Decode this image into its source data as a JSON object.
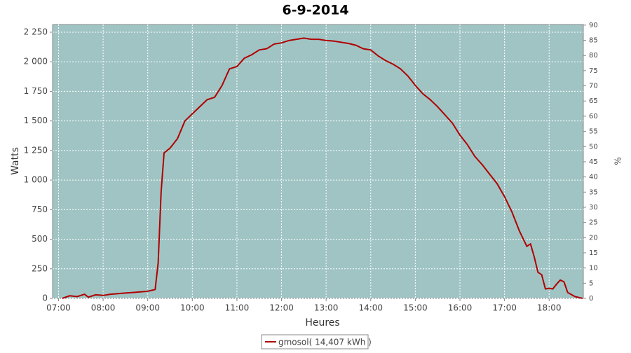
{
  "chart_data": {
    "type": "line",
    "title": "6-9-2014",
    "x_label": "Heures",
    "y_label": "Watts",
    "y2_label": "%",
    "x": [
      "07:05",
      "07:15",
      "07:25",
      "07:35",
      "07:40",
      "07:50",
      "08:00",
      "08:10",
      "08:20",
      "08:30",
      "08:40",
      "08:50",
      "09:00",
      "09:10",
      "09:14",
      "09:18",
      "09:22",
      "09:30",
      "09:40",
      "09:50",
      "10:00",
      "10:10",
      "10:20",
      "10:30",
      "10:40",
      "10:50",
      "11:00",
      "11:10",
      "11:20",
      "11:30",
      "11:40",
      "11:50",
      "12:00",
      "12:10",
      "12:20",
      "12:30",
      "12:40",
      "12:50",
      "13:00",
      "13:10",
      "13:20",
      "13:30",
      "13:40",
      "13:50",
      "14:00",
      "14:10",
      "14:20",
      "14:30",
      "14:40",
      "14:50",
      "15:00",
      "15:10",
      "15:20",
      "15:30",
      "15:40",
      "15:50",
      "16:00",
      "16:10",
      "16:20",
      "16:30",
      "16:40",
      "16:50",
      "17:00",
      "17:10",
      "17:20",
      "17:30",
      "17:35",
      "17:40",
      "17:45",
      "17:50",
      "17:55",
      "18:00",
      "18:05",
      "18:10",
      "18:15",
      "18:20",
      "18:25",
      "18:35",
      "18:45"
    ],
    "series": [
      {
        "name": "gmosol( 14,407 kWh )",
        "color": "#b00000",
        "values": [
          0,
          22,
          15,
          35,
          10,
          30,
          25,
          35,
          40,
          45,
          50,
          55,
          60,
          75,
          300,
          900,
          1230,
          1270,
          1350,
          1500,
          1560,
          1620,
          1680,
          1700,
          1800,
          1940,
          1960,
          2030,
          2060,
          2100,
          2110,
          2150,
          2160,
          2180,
          2190,
          2200,
          2190,
          2190,
          2180,
          2175,
          2165,
          2155,
          2140,
          2110,
          2100,
          2050,
          2010,
          1980,
          1940,
          1880,
          1800,
          1730,
          1680,
          1620,
          1550,
          1480,
          1380,
          1300,
          1200,
          1130,
          1050,
          970,
          860,
          730,
          570,
          440,
          460,
          350,
          220,
          200,
          80,
          85,
          80,
          120,
          155,
          140,
          50,
          15,
          0
        ]
      }
    ],
    "xlim": [
      "06:52",
      "18:46"
    ],
    "xticks": [
      "07:00",
      "08:00",
      "09:00",
      "10:00",
      "11:00",
      "12:00",
      "13:00",
      "14:00",
      "15:00",
      "16:00",
      "17:00",
      "18:00"
    ],
    "ylim": [
      0,
      2315
    ],
    "yticks": [
      0,
      250,
      500,
      750,
      {
        "value": 1000,
        "label": "1 000"
      },
      {
        "value": 1250,
        "label": "1 250"
      },
      {
        "value": 1500,
        "label": "1 500"
      },
      {
        "value": 1750,
        "label": "1 750"
      },
      {
        "value": 2000,
        "label": "2 000"
      },
      {
        "value": 2250,
        "label": "2 250"
      }
    ],
    "y2lim": [
      0,
      90.2
    ],
    "y2ticks": [
      0,
      5,
      10,
      15,
      20,
      25,
      30,
      35,
      40,
      45,
      50,
      55,
      60,
      65,
      70,
      75,
      80,
      85,
      90
    ],
    "grid": true,
    "legend": "bottom"
  }
}
